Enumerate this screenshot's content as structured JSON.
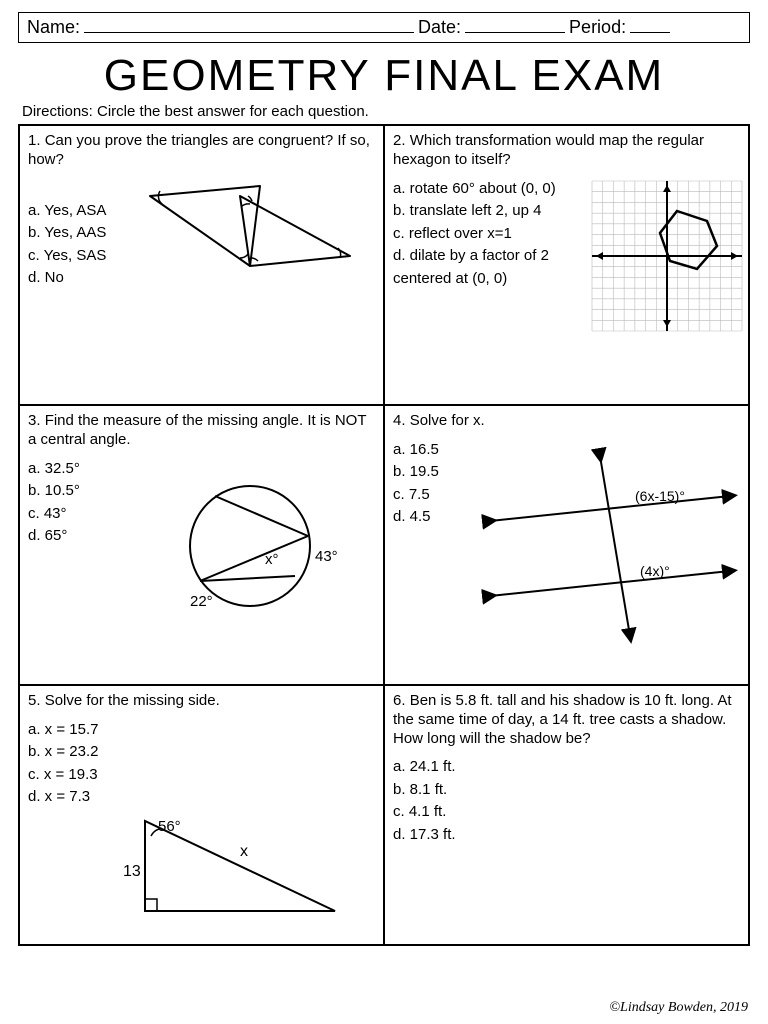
{
  "header": {
    "name_label": "Name:",
    "date_label": "Date:",
    "period_label": "Period:"
  },
  "title": "GEOMETRY FINAL EXAM",
  "directions": "Directions: Circle the best answer for each question.",
  "questions": [
    {
      "num": "1.",
      "text": "Can you prove the triangles are congruent? If so, how?",
      "options": [
        "a.  Yes, ASA",
        "b.  Yes, AAS",
        "c.  Yes, SAS",
        "d.  No"
      ]
    },
    {
      "num": "2.",
      "text": "Which transformation would map the regular hexagon to itself?",
      "options": [
        "a.  rotate 60° about (0, 0)",
        "b.  translate left 2, up 4",
        "c.  reflect over x=1",
        "d.  dilate by a factor of 2 centered at (0, 0)"
      ]
    },
    {
      "num": "3.",
      "text": "Find the measure of the missing angle. It is NOT a central angle.",
      "options": [
        "a.  32.5°",
        "b.  10.5°",
        "c.  43°",
        "d.  65°"
      ],
      "labels": {
        "a22": "22°",
        "a43": "43°",
        "ax": "x°"
      }
    },
    {
      "num": "4.",
      "text": "Solve for x.",
      "options": [
        "a.  16.5",
        "b.  19.5",
        "c.  7.5",
        "d.  4.5"
      ],
      "labels": {
        "top": "(6x-15)°",
        "bot": "(4x)°"
      }
    },
    {
      "num": "5.",
      "text": "Solve for the missing side.",
      "options": [
        "a.  x = 15.7",
        "b.  x = 23.2",
        "c.  x = 19.3",
        "d.  x = 7.3"
      ],
      "labels": {
        "angle": "56°",
        "side": "13",
        "hyp": "x"
      }
    },
    {
      "num": "6.",
      "text": "Ben is 5.8 ft. tall and his shadow is 10 ft. long. At the same time of day, a 14 ft. tree casts a shadow. How long will the shadow be?",
      "options": [
        "a.  24.1 ft.",
        "b.  8.1 ft.",
        "c.  4.1 ft.",
        "d.  17.3 ft."
      ]
    }
  ],
  "footer": "©Lindsay Bowden, 2019",
  "style": {
    "stroke": "#000000",
    "stroke_width": 2,
    "grid_color": "#888888"
  }
}
